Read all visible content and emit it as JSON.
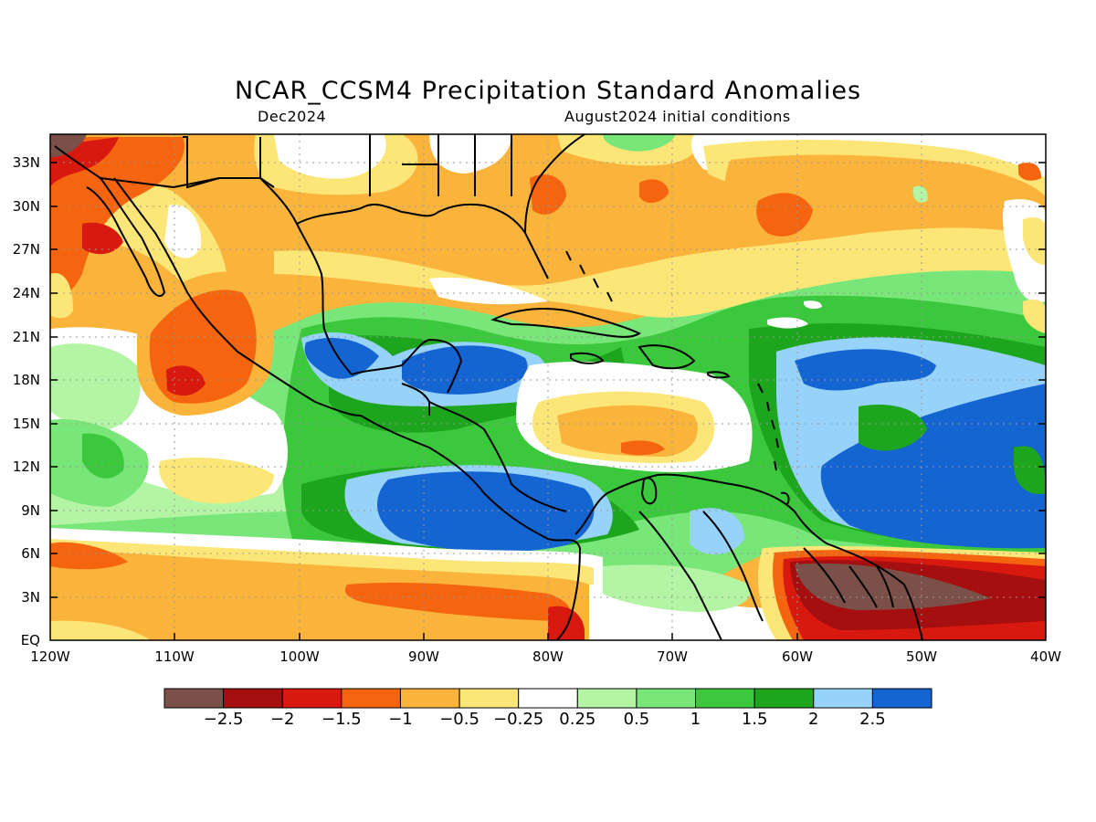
{
  "title": "NCAR_CCSM4 Precipitation Standard Anomalies",
  "subtitle_left": "Dec2024",
  "subtitle_right": "August2024 initial conditions",
  "map": {
    "lon_range": [
      -120,
      -40
    ],
    "lat_range": [
      0,
      35
    ],
    "lat_ticks": [
      {
        "label": "33N",
        "lat": 33
      },
      {
        "label": "30N",
        "lat": 30
      },
      {
        "label": "27N",
        "lat": 27
      },
      {
        "label": "24N",
        "lat": 24
      },
      {
        "label": "21N",
        "lat": 21
      },
      {
        "label": "18N",
        "lat": 18
      },
      {
        "label": "15N",
        "lat": 15
      },
      {
        "label": "12N",
        "lat": 12
      },
      {
        "label": "9N",
        "lat": 9
      },
      {
        "label": "6N",
        "lat": 6
      },
      {
        "label": "3N",
        "lat": 3
      },
      {
        "label": "EQ",
        "lat": 0
      }
    ],
    "lon_ticks": [
      {
        "label": "120W",
        "lon": -120
      },
      {
        "label": "110W",
        "lon": -110
      },
      {
        "label": "100W",
        "lon": -100
      },
      {
        "label": "90W",
        "lon": -90
      },
      {
        "label": "80W",
        "lon": -80
      },
      {
        "label": "70W",
        "lon": -70
      },
      {
        "label": "60W",
        "lon": -60
      },
      {
        "label": "50W",
        "lon": -50
      },
      {
        "label": "40W",
        "lon": -40
      }
    ],
    "gridlines": "dotted"
  },
  "colorbar": {
    "colors": [
      "#7a5048",
      "#a50f0f",
      "#d7190f",
      "#f5640f",
      "#fab43c",
      "#fde678",
      "#ffffff",
      "#b4f5a5",
      "#78e678",
      "#3cc83c",
      "#1ea51e",
      "#96d2fa",
      "#1464d2"
    ],
    "labels": [
      "−2.5",
      "−2",
      "−1.5",
      "−1",
      "−0.5",
      "−0.25",
      "0.25",
      "0.5",
      "1",
      "1.5",
      "2",
      "2.5"
    ]
  }
}
